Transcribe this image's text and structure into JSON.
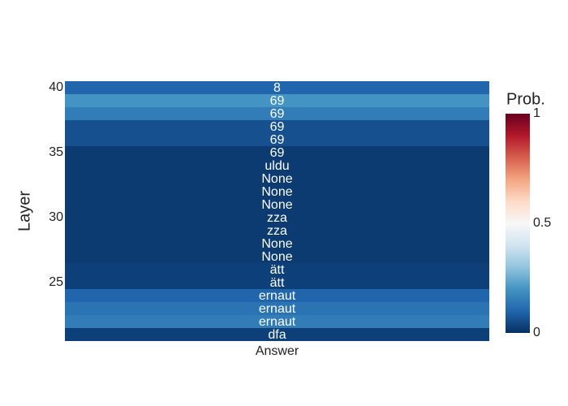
{
  "chart_data": {
    "type": "heatmap",
    "x_categories": [
      "Answer"
    ],
    "y": [
      21,
      22,
      23,
      24,
      25,
      26,
      27,
      28,
      29,
      30,
      31,
      32,
      33,
      34,
      35,
      36,
      37,
      38,
      39,
      40
    ],
    "values": [
      0.03,
      0.15,
      0.13,
      0.1,
      0.03,
      0.03,
      0.02,
      0.02,
      0.02,
      0.02,
      0.02,
      0.02,
      0.02,
      0.02,
      0.02,
      0.06,
      0.06,
      0.15,
      0.2,
      0.1
    ],
    "text": [
      "dfa",
      "ernaut",
      "ernaut",
      "ernaut",
      "ätt",
      "ätt",
      "None",
      "None",
      "zza",
      "zza",
      "None",
      "None",
      "None",
      "uldu",
      "69",
      "69",
      "69",
      "69",
      "69",
      "8"
    ],
    "ylabel": "Layer",
    "ylim": [
      20.5,
      40.5
    ],
    "yticks": [
      25,
      30,
      35,
      40
    ],
    "colorbar_title": "Prob.",
    "zlim": [
      0,
      1
    ],
    "zticks": [
      0,
      0.5,
      1
    ],
    "colorscale": [
      "#053061",
      "#2166ac",
      "#4393c3",
      "#92c5de",
      "#d1e5f0",
      "#f7f7f7",
      "#fddbc7",
      "#f4a582",
      "#d6604d",
      "#b2182b",
      "#67001f"
    ]
  }
}
